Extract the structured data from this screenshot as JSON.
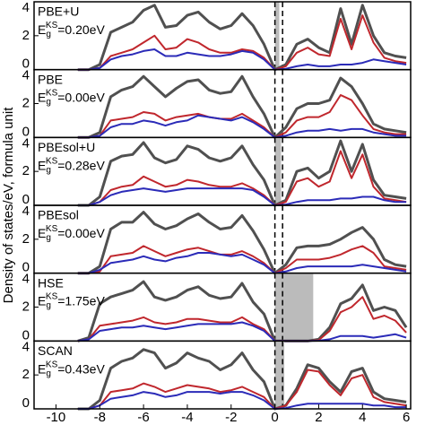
{
  "chart_data": [
    {
      "type": "line",
      "ylabel": "Density of states/eV, formula unit",
      "label": "PBE+U",
      "gap_e": "E",
      "gap_sub": "g",
      "gap_sup": "KS",
      "gap_label": "=0.20eV",
      "gap": 0.2,
      "vlines": [
        0,
        0.35
      ],
      "x": [
        -9,
        -8.5,
        -8,
        -7.5,
        -7,
        -6.5,
        -6,
        -5.5,
        -5,
        -4.5,
        -4,
        -3.5,
        -3,
        -2.5,
        -2,
        -1.5,
        -1,
        -0.5,
        0,
        0.5,
        1,
        1.5,
        2,
        2.5,
        3,
        3.5,
        4,
        4.5,
        5,
        5.5,
        6
      ],
      "xlim": [
        -11,
        6.2
      ],
      "ylim": [
        0,
        4
      ],
      "yticks": [
        0,
        2,
        4
      ],
      "series": [
        {
          "color": "#505050",
          "values": [
            0,
            0,
            0.3,
            2.2,
            2.5,
            2.8,
            3.5,
            3.8,
            2.5,
            2.6,
            3.2,
            3.4,
            2.8,
            2.4,
            2.6,
            3.3,
            2.6,
            1.5,
            0,
            0.3,
            1.5,
            1.8,
            1.3,
            1.0,
            3.6,
            1.5,
            3.8,
            2.0,
            1.0,
            0.8,
            0.7
          ]
        },
        {
          "color": "#c0272d",
          "values": [
            0,
            0,
            0.1,
            0.8,
            1.0,
            1.2,
            1.6,
            2.0,
            1.2,
            1.3,
            1.8,
            1.6,
            1.2,
            1.0,
            1.0,
            1.2,
            1.1,
            0.7,
            0,
            0.2,
            1.0,
            1.3,
            0.9,
            0.8,
            3.0,
            1.2,
            3.2,
            1.6,
            0.7,
            0.5,
            0.4
          ]
        },
        {
          "color": "#2b2bb8",
          "values": [
            0,
            0,
            0.1,
            0.6,
            0.8,
            0.9,
            1.1,
            1.2,
            0.8,
            0.8,
            1.0,
            0.9,
            0.8,
            0.8,
            0.9,
            1.1,
            1.0,
            0.6,
            0,
            0.05,
            0.2,
            0.3,
            0.2,
            0.2,
            0.3,
            0.3,
            0.4,
            0.6,
            0.5,
            0.4,
            0.3
          ]
        }
      ]
    },
    {
      "type": "line",
      "label": "PBE",
      "gap_e": "E",
      "gap_sub": "g",
      "gap_sup": "KS",
      "gap_label": "=0.00eV",
      "gap": 0,
      "vlines": [
        0,
        0.35
      ],
      "x": [
        -9,
        -8.5,
        -8,
        -7.5,
        -7,
        -6.5,
        -6,
        -5.5,
        -5,
        -4.5,
        -4,
        -3.5,
        -3,
        -2.5,
        -2,
        -1.5,
        -1,
        -0.5,
        0,
        0.5,
        1,
        1.5,
        2,
        2.5,
        3,
        3.5,
        4,
        4.5,
        5,
        5.5,
        6
      ],
      "xlim": [
        -11,
        6.2
      ],
      "ylim": [
        0,
        4
      ],
      "yticks": [
        0,
        2,
        4
      ],
      "series": [
        {
          "color": "#505050",
          "values": [
            0,
            0,
            0.3,
            2.4,
            2.8,
            3.0,
            3.6,
            3.0,
            2.4,
            2.9,
            3.3,
            3.4,
            2.8,
            2.6,
            2.7,
            3.6,
            2.4,
            1.4,
            0,
            0.6,
            1.7,
            2.0,
            2.0,
            2.2,
            3.5,
            3.0,
            2.0,
            0.8,
            0.5,
            0.4,
            0.3
          ]
        },
        {
          "color": "#c0272d",
          "values": [
            0,
            0,
            0.1,
            1.0,
            1.1,
            1.2,
            1.5,
            1.4,
            1.0,
            1.2,
            1.3,
            1.4,
            1.2,
            1.1,
            1.1,
            1.4,
            1.0,
            0.6,
            0,
            0.3,
            1.0,
            1.2,
            1.2,
            1.5,
            2.5,
            2.2,
            1.3,
            0.5,
            0.3,
            0.2,
            0.2
          ]
        },
        {
          "color": "#2b2bb8",
          "values": [
            0,
            0,
            0.1,
            0.6,
            0.8,
            0.8,
            1.0,
            0.9,
            0.7,
            0.9,
            1.0,
            1.3,
            1.2,
            1.1,
            1.0,
            1.2,
            0.9,
            0.5,
            0,
            0.1,
            0.3,
            0.4,
            0.4,
            0.5,
            0.4,
            0.5,
            0.5,
            0.3,
            0.2,
            0.1,
            0.1
          ]
        }
      ]
    },
    {
      "type": "line",
      "label": "PBEsol+U",
      "gap_e": "E",
      "gap_sub": "g",
      "gap_sup": "KS",
      "gap_label": "=0.28eV",
      "gap": 0.28,
      "vlines": [
        0,
        0.35
      ],
      "x": [
        -9,
        -8.5,
        -8,
        -7.5,
        -7,
        -6.5,
        -6,
        -5.5,
        -5,
        -4.5,
        -4,
        -3.5,
        -3,
        -2.5,
        -2,
        -1.5,
        -1,
        -0.5,
        0,
        0.5,
        1,
        1.5,
        2,
        2.5,
        3,
        3.5,
        4,
        4.5,
        5,
        5.5,
        6
      ],
      "xlim": [
        -11,
        6.2
      ],
      "ylim": [
        0,
        4
      ],
      "yticks": [
        0,
        2,
        4
      ],
      "series": [
        {
          "color": "#505050",
          "values": [
            0,
            0,
            0.5,
            2.6,
            2.9,
            3.0,
            3.7,
            2.8,
            2.5,
            2.7,
            3.5,
            3.3,
            2.8,
            2.6,
            2.8,
            3.5,
            2.4,
            1.5,
            0,
            0.3,
            2.0,
            2.2,
            1.6,
            2.0,
            3.8,
            2.0,
            3.6,
            1.5,
            0.6,
            0.5,
            0.4
          ]
        },
        {
          "color": "#c0272d",
          "values": [
            0,
            0,
            0.2,
            0.9,
            1.1,
            1.2,
            1.7,
            1.4,
            1.1,
            1.2,
            1.5,
            1.4,
            1.2,
            1.1,
            1.1,
            1.3,
            1.0,
            0.6,
            0,
            0.2,
            1.4,
            1.6,
            1.1,
            1.4,
            3.2,
            1.6,
            3.0,
            1.1,
            0.4,
            0.3,
            0.2
          ]
        },
        {
          "color": "#2b2bb8",
          "values": [
            0,
            0,
            0.2,
            0.6,
            0.8,
            0.9,
            1.0,
            0.9,
            0.8,
            0.9,
            1.0,
            1.0,
            1.0,
            1.0,
            1.0,
            1.0,
            0.9,
            0.5,
            0,
            0.05,
            0.2,
            0.3,
            0.3,
            0.3,
            0.4,
            0.4,
            0.5,
            0.5,
            0.3,
            0.2,
            0.2
          ]
        }
      ]
    },
    {
      "type": "line",
      "label": "PBEsol",
      "gap_e": "E",
      "gap_sub": "g",
      "gap_sup": "KS",
      "gap_label": "=0.00eV",
      "gap": 0,
      "vlines": [
        0,
        0.35
      ],
      "x": [
        -9,
        -8.5,
        -8,
        -7.5,
        -7,
        -6.5,
        -6,
        -5.5,
        -5,
        -4.5,
        -4,
        -3.5,
        -3,
        -2.5,
        -2,
        -1.5,
        -1,
        -0.5,
        0,
        0.5,
        1,
        1.5,
        2,
        2.5,
        3,
        3.5,
        4,
        4.5,
        5,
        5.5,
        6
      ],
      "xlim": [
        -11,
        6.2
      ],
      "ylim": [
        0,
        4
      ],
      "yticks": [
        0,
        2,
        4
      ],
      "series": [
        {
          "color": "#505050",
          "values": [
            0,
            0,
            0.4,
            2.6,
            3.0,
            3.0,
            3.6,
            2.9,
            2.6,
            2.8,
            3.2,
            3.5,
            3.0,
            2.6,
            2.7,
            3.4,
            2.5,
            1.4,
            0,
            0.5,
            1.5,
            1.6,
            1.6,
            1.7,
            2.0,
            2.4,
            2.7,
            2.0,
            0.8,
            0.5,
            0.4
          ]
        },
        {
          "color": "#c0272d",
          "values": [
            0,
            0,
            0.1,
            1.0,
            1.1,
            1.2,
            1.6,
            1.3,
            1.0,
            1.2,
            1.4,
            1.5,
            1.3,
            1.1,
            1.1,
            1.3,
            1.0,
            0.6,
            0,
            0.3,
            0.8,
            0.8,
            0.8,
            0.9,
            1.1,
            1.4,
            1.6,
            1.2,
            0.4,
            0.3,
            0.2
          ]
        },
        {
          "color": "#2b2bb8",
          "values": [
            0,
            0,
            0.2,
            0.6,
            0.7,
            0.8,
            1.0,
            0.8,
            0.7,
            0.9,
            1.0,
            1.2,
            1.2,
            1.1,
            1.0,
            1.1,
            0.8,
            0.5,
            0,
            0.1,
            0.3,
            0.4,
            0.4,
            0.4,
            0.4,
            0.4,
            0.5,
            0.4,
            0.3,
            0.2,
            0.1
          ]
        }
      ]
    },
    {
      "type": "line",
      "label": "HSE",
      "gap_e": "E",
      "gap_sub": "g",
      "gap_sup": "KS",
      "gap_label": "=1.75eV",
      "gap": 1.75,
      "vlines": [
        0,
        0.35
      ],
      "x": [
        -9,
        -8.5,
        -8,
        -7.5,
        -7,
        -6.5,
        -6,
        -5.5,
        -5,
        -4.5,
        -4,
        -3.5,
        -3,
        -2.5,
        -2,
        -1.5,
        -1,
        -0.5,
        0,
        0.5,
        1,
        1.5,
        2,
        2.5,
        3,
        3.5,
        4,
        4.5,
        5,
        5.5,
        6
      ],
      "xlim": [
        -11,
        6.2
      ],
      "ylim": [
        0,
        4
      ],
      "yticks": [
        0,
        2,
        4
      ],
      "series": [
        {
          "color": "#505050",
          "values": [
            0,
            0.2,
            2.2,
            2.6,
            2.8,
            3.0,
            3.5,
            2.6,
            2.4,
            2.6,
            3.0,
            3.2,
            2.7,
            2.5,
            2.6,
            3.4,
            2.3,
            1.6,
            0,
            0,
            0,
            0,
            0.1,
            0.8,
            2.2,
            2.5,
            3.3,
            1.8,
            2.0,
            1.8,
            0.8
          ]
        },
        {
          "color": "#c0272d",
          "values": [
            0,
            0.1,
            0.9,
            1.0,
            1.1,
            1.2,
            1.4,
            1.1,
            1.0,
            1.1,
            1.3,
            1.3,
            1.2,
            1.1,
            1.1,
            1.4,
            1.0,
            0.7,
            0,
            0,
            0,
            0,
            0.05,
            0.6,
            1.7,
            2.0,
            2.6,
            1.3,
            1.5,
            1.2,
            0.5
          ]
        },
        {
          "color": "#2b2bb8",
          "values": [
            0,
            0.1,
            0.6,
            0.7,
            0.8,
            0.8,
            0.9,
            0.8,
            0.7,
            0.8,
            0.9,
            1.0,
            1.0,
            1.0,
            1.0,
            1.1,
            0.9,
            0.6,
            0,
            0,
            0,
            0,
            0.02,
            0.1,
            0.3,
            0.3,
            0.3,
            0.2,
            0.3,
            0.4,
            0.2
          ]
        }
      ]
    },
    {
      "type": "line",
      "label": "SCAN",
      "gap_e": "E",
      "gap_sub": "g",
      "gap_sup": "KS",
      "gap_label": "=0.43eV",
      "gap": 0.43,
      "vlines": [
        0,
        0.35
      ],
      "x": [
        -9,
        -8.5,
        -8,
        -7.5,
        -7,
        -6.5,
        -6,
        -5.5,
        -5,
        -4.5,
        -4,
        -3.5,
        -3,
        -2.5,
        -2,
        -1.5,
        -1,
        -0.5,
        0,
        0.5,
        1,
        1.5,
        2,
        2.5,
        3,
        3.5,
        4,
        4.5,
        5,
        5.5,
        6
      ],
      "xlim": [
        -11,
        6.2
      ],
      "ylim": [
        0,
        4
      ],
      "yticks": [
        0,
        2,
        4
      ],
      "xticks": [
        -10,
        -8,
        -6,
        -4,
        -2,
        0,
        2,
        4,
        6
      ],
      "series": [
        {
          "color": "#505050",
          "values": [
            0,
            0,
            0.5,
            2.4,
            2.8,
            3.0,
            3.5,
            3.3,
            2.4,
            2.7,
            3.3,
            3.0,
            2.8,
            2.3,
            2.6,
            3.3,
            2.3,
            1.6,
            0,
            0.2,
            1.2,
            2.6,
            2.4,
            1.6,
            1.0,
            2.2,
            2.4,
            1.0,
            0.6,
            0.5,
            0.4
          ]
        },
        {
          "color": "#c0272d",
          "values": [
            0,
            0,
            0.2,
            1.0,
            1.1,
            1.2,
            1.5,
            1.3,
            1.0,
            1.2,
            1.4,
            1.3,
            1.2,
            1.0,
            1.1,
            1.3,
            1.0,
            0.7,
            0,
            0.2,
            1.0,
            2.3,
            2.2,
            1.4,
            0.8,
            1.8,
            2.0,
            0.7,
            0.4,
            0.3,
            0.2
          ]
        },
        {
          "color": "#2b2bb8",
          "values": [
            0,
            0,
            0.2,
            0.6,
            0.7,
            0.8,
            1.0,
            0.9,
            0.7,
            0.8,
            1.0,
            1.0,
            1.0,
            0.9,
            1.0,
            1.0,
            0.8,
            0.5,
            0,
            0.05,
            0.2,
            0.3,
            0.3,
            0.3,
            0.3,
            0.3,
            0.3,
            0.2,
            0.2,
            0.1,
            0.1
          ]
        }
      ]
    }
  ]
}
